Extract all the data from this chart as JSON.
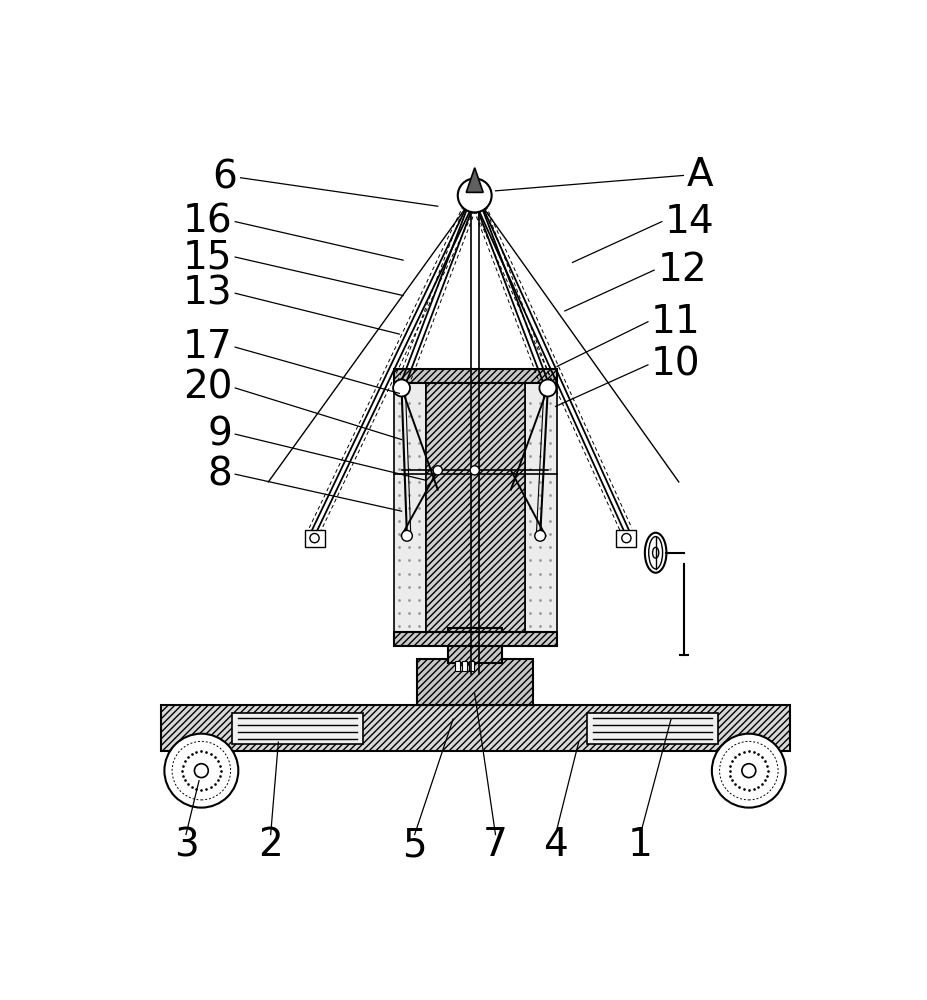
{
  "bg_color": "#ffffff",
  "line_color": "#000000",
  "fig_width": 9.27,
  "fig_height": 10.0,
  "label_fontsize": 28,
  "labels_left": [
    [
      "6",
      155,
      75,
      415,
      112
    ],
    [
      "16",
      148,
      132,
      370,
      182
    ],
    [
      "15",
      148,
      178,
      370,
      228
    ],
    [
      "13",
      148,
      225,
      365,
      278
    ],
    [
      "17",
      148,
      295,
      365,
      355
    ],
    [
      "20",
      148,
      348,
      368,
      415
    ],
    [
      "9",
      148,
      408,
      400,
      468
    ],
    [
      "8",
      148,
      460,
      368,
      508
    ]
  ],
  "labels_right": [
    [
      "A",
      738,
      72,
      490,
      92
    ],
    [
      "14",
      710,
      132,
      590,
      185
    ],
    [
      "12",
      700,
      195,
      580,
      248
    ],
    [
      "11",
      692,
      262,
      570,
      320
    ],
    [
      "10",
      692,
      318,
      568,
      372
    ]
  ],
  "labels_bottom": [
    [
      "3",
      88,
      942,
      105,
      858
    ],
    [
      "2",
      198,
      942,
      208,
      808
    ],
    [
      "5",
      385,
      942,
      435,
      778
    ],
    [
      "7",
      490,
      942,
      463,
      745
    ],
    [
      "4",
      568,
      942,
      598,
      808
    ],
    [
      "1",
      678,
      942,
      718,
      778
    ]
  ]
}
